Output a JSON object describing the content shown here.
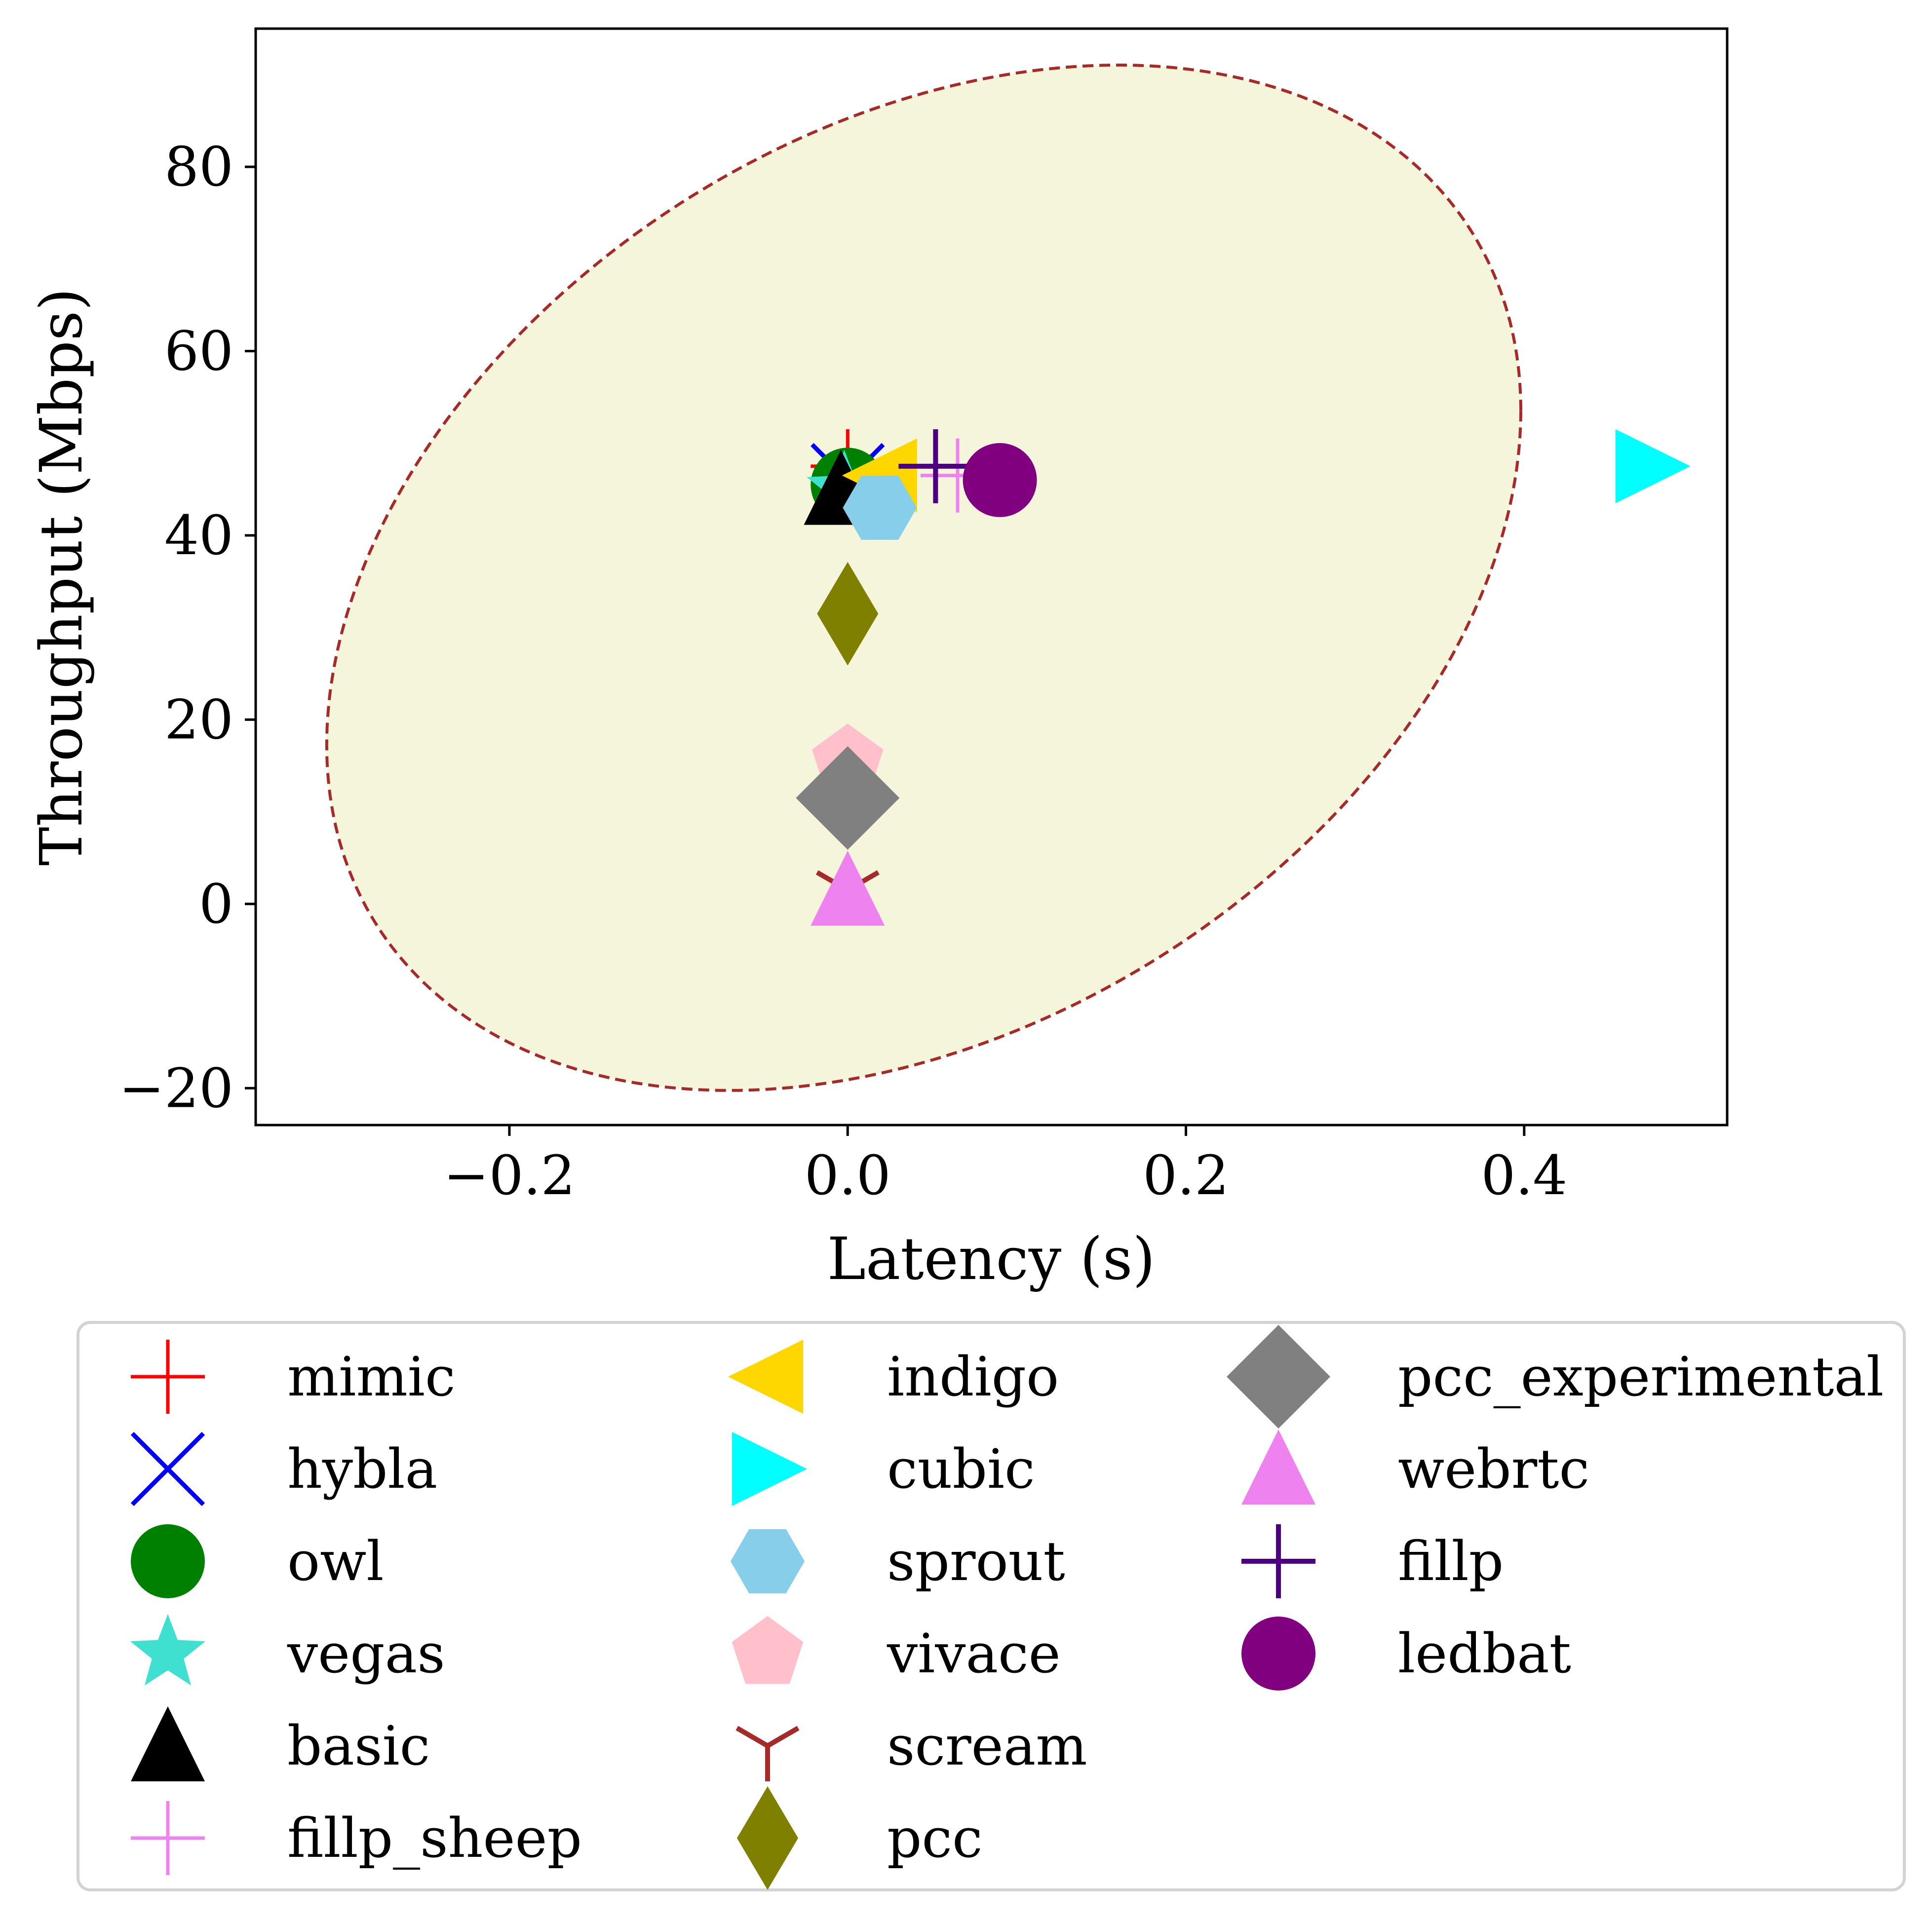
{
  "chart_data": {
    "type": "scatter",
    "title": "",
    "xlabel": "Latency (s)",
    "ylabel": "Throughput (Mbps)",
    "xlim": [
      -0.35,
      0.52
    ],
    "ylim": [
      -24,
      95
    ],
    "xticks": [
      -0.2,
      0.0,
      0.2,
      0.4
    ],
    "xtick_labels": [
      "−0.2",
      "0.0",
      "0.2",
      "0.4"
    ],
    "yticks": [
      -20,
      0,
      20,
      40,
      60,
      80
    ],
    "ytick_labels": [
      "−20",
      "0",
      "20",
      "40",
      "60",
      "80"
    ],
    "grid": false,
    "legend": {
      "position": "below",
      "columns": 3
    },
    "ellipse": {
      "center": [
        0.045,
        35.4
      ],
      "semi_axes": [
        0.353,
        52.6
      ],
      "skew": 0.0875,
      "fill": "#f5f5dc",
      "edge": "#a52a2a",
      "style": "dashed"
    },
    "series": [
      {
        "name": "mimic",
        "x": 0.0,
        "y": 47.5,
        "marker": "plus-thin",
        "color": "#ff0000"
      },
      {
        "name": "hybla",
        "x": 0.0,
        "y": 46.0,
        "marker": "x",
        "color": "#0000ff"
      },
      {
        "name": "owl",
        "x": 0.0,
        "y": 45.5,
        "marker": "circle",
        "color": "#008000"
      },
      {
        "name": "vegas",
        "x": -0.002,
        "y": 45.0,
        "marker": "star",
        "color": "#40e0d0"
      },
      {
        "name": "basic",
        "x": -0.004,
        "y": 45.0,
        "marker": "triangle-up",
        "color": "#000000"
      },
      {
        "name": "fillp_sheep",
        "x": 0.065,
        "y": 46.5,
        "marker": "plus-thin",
        "color": "#ee82ee"
      },
      {
        "name": "indigo",
        "x": 0.02,
        "y": 46.5,
        "marker": "triangle-left",
        "color": "#ffd700"
      },
      {
        "name": "cubic",
        "x": 0.475,
        "y": 47.5,
        "marker": "triangle-right",
        "color": "#00ffff"
      },
      {
        "name": "sprout",
        "x": 0.019,
        "y": 43.0,
        "marker": "hexagon",
        "color": "#87ceeb"
      },
      {
        "name": "vivace",
        "x": 0.0,
        "y": 15.5,
        "marker": "pentagon",
        "color": "#ffc0cb"
      },
      {
        "name": "scream",
        "x": 0.0,
        "y": 1.5,
        "marker": "tri-down",
        "color": "#a52a2a"
      },
      {
        "name": "pcc",
        "x": 0.0,
        "y": 31.5,
        "marker": "thin-diamond",
        "color": "#808000"
      },
      {
        "name": "pcc_experimental",
        "x": 0.0,
        "y": 11.5,
        "marker": "diamond",
        "color": "#808080"
      },
      {
        "name": "webrtc",
        "x": 0.0,
        "y": 1.5,
        "marker": "triangle-up",
        "color": "#ee82ee"
      },
      {
        "name": "fillp",
        "x": 0.052,
        "y": 47.5,
        "marker": "plus",
        "color": "#4b0082"
      },
      {
        "name": "ledbat",
        "x": 0.09,
        "y": 46.0,
        "marker": "circle",
        "color": "#800080"
      }
    ]
  }
}
